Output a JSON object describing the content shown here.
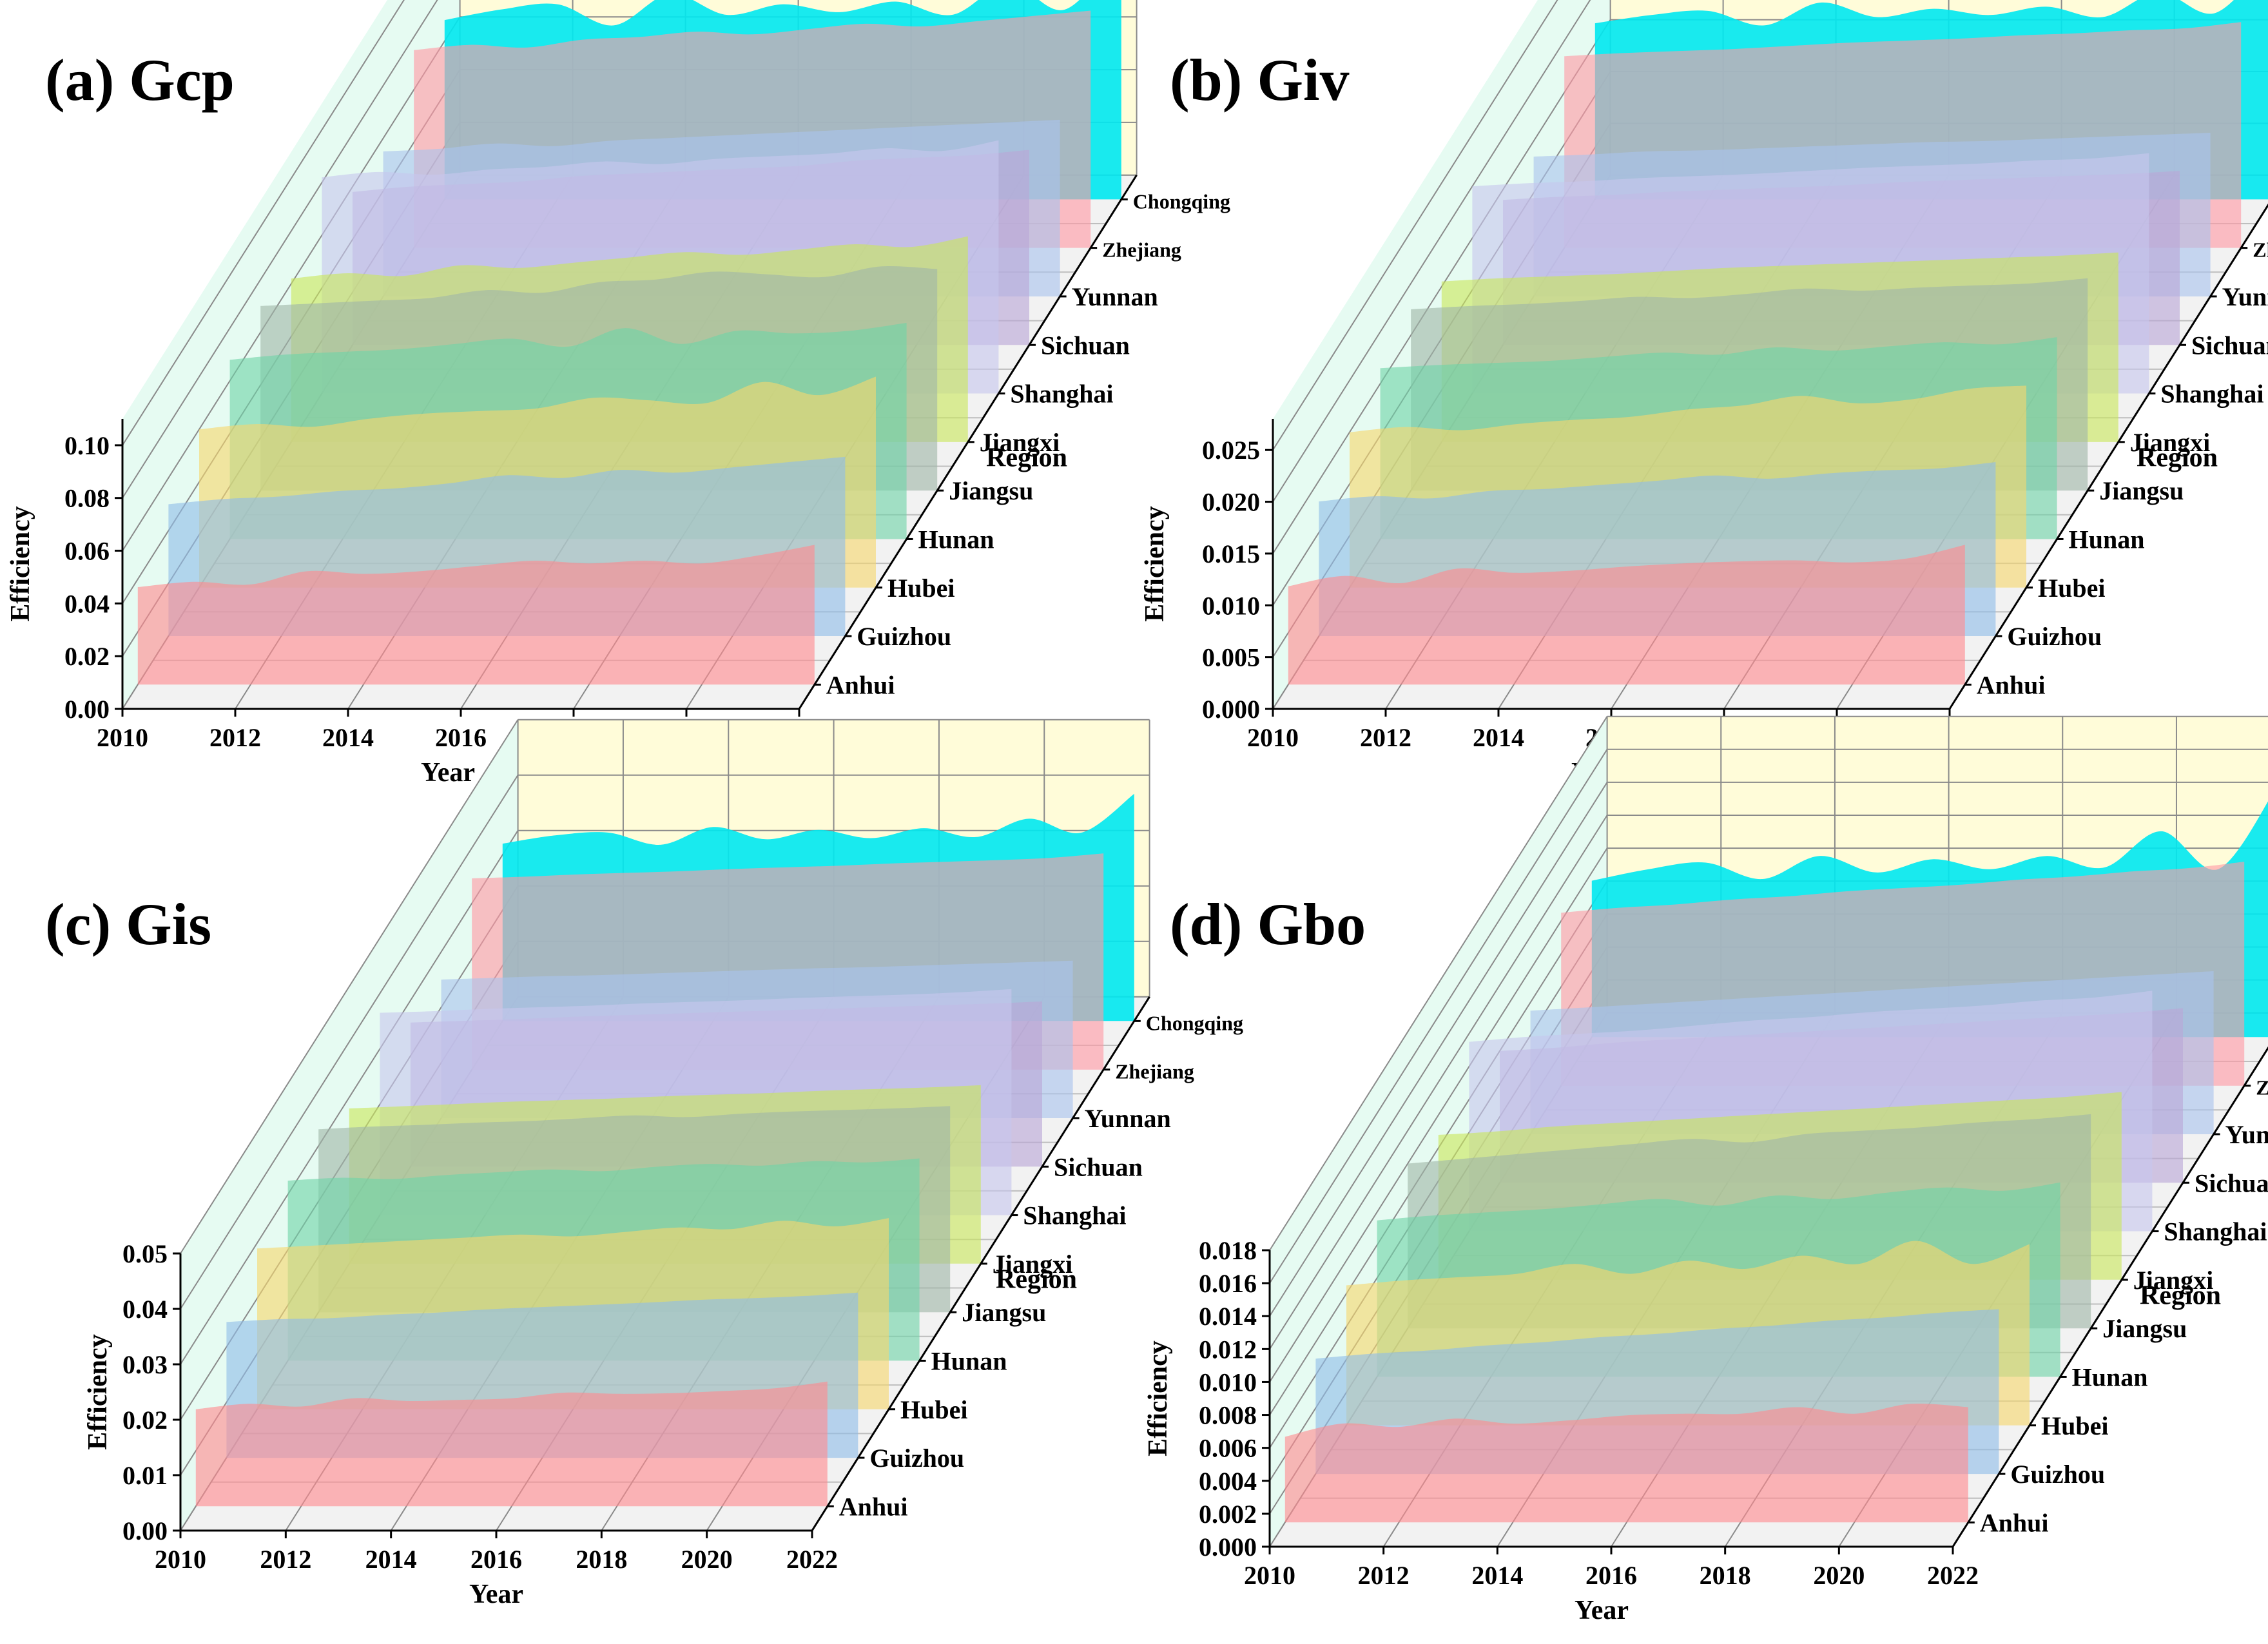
{
  "figure": {
    "regions": [
      "Anhui",
      "Guizhou",
      "Hubei",
      "Hunan",
      "Jiangsu",
      "Jiangxi",
      "Shanghai",
      "Sichuan",
      "Yunnan",
      "Zhejiang",
      "Chongqing"
    ],
    "region_colors": [
      "#ff8a8f",
      "#8fbde8",
      "#f5d76e",
      "#6fd3a8",
      "#9fb6a8",
      "#c9e65c",
      "#c7c7ee",
      "#b9a7d6",
      "#a9c4ee",
      "#ff9aa5",
      "#00e8f0"
    ],
    "years": [
      2010,
      2011,
      2012,
      2013,
      2014,
      2015,
      2016,
      2017,
      2018,
      2019,
      2020,
      2021,
      2022
    ],
    "colors": {
      "back_wall": "#fffcd9",
      "left_wall": "#e6fbf2",
      "floor": "#f2f2f2",
      "grid": "#8a8a8a"
    }
  },
  "chart_data": [
    {
      "type": "area",
      "title": "(a) Gcp",
      "xlabel": "Year",
      "ylabel": "Efficiency",
      "zlabel": "Region",
      "x_ticks": [
        "2010",
        "2012",
        "2014",
        "2016",
        "2018",
        "2020",
        "2022"
      ],
      "xlim": [
        2010,
        2022
      ],
      "y_ticks": [
        "0.00",
        "0.02",
        "0.04",
        "0.06",
        "0.08",
        "0.10"
      ],
      "ylim": [
        0,
        0.11
      ],
      "series": [
        {
          "name": "Anhui",
          "values": [
            0.037,
            0.039,
            0.038,
            0.043,
            0.042,
            0.043,
            0.045,
            0.047,
            0.046,
            0.047,
            0.046,
            0.049,
            0.053
          ]
        },
        {
          "name": "Guizhou",
          "values": [
            0.05,
            0.052,
            0.053,
            0.055,
            0.056,
            0.058,
            0.061,
            0.06,
            0.063,
            0.062,
            0.064,
            0.066,
            0.068
          ]
        },
        {
          "name": "Hubei",
          "values": [
            0.06,
            0.062,
            0.061,
            0.064,
            0.066,
            0.067,
            0.068,
            0.072,
            0.071,
            0.07,
            0.078,
            0.073,
            0.08
          ]
        },
        {
          "name": "Hunan",
          "values": [
            0.068,
            0.07,
            0.071,
            0.072,
            0.074,
            0.076,
            0.073,
            0.08,
            0.074,
            0.079,
            0.078,
            0.079,
            0.082
          ]
        },
        {
          "name": "Jiangsu",
          "values": [
            0.07,
            0.071,
            0.072,
            0.073,
            0.076,
            0.075,
            0.079,
            0.08,
            0.083,
            0.082,
            0.081,
            0.085,
            0.084
          ]
        },
        {
          "name": "Jiangxi",
          "values": [
            0.062,
            0.064,
            0.063,
            0.067,
            0.066,
            0.068,
            0.07,
            0.072,
            0.071,
            0.073,
            0.075,
            0.074,
            0.078
          ]
        },
        {
          "name": "Shanghai",
          "values": [
            0.082,
            0.084,
            0.083,
            0.085,
            0.086,
            0.088,
            0.087,
            0.089,
            0.09,
            0.091,
            0.093,
            0.092,
            0.096
          ]
        },
        {
          "name": "Sichuan",
          "values": [
            0.058,
            0.06,
            0.061,
            0.062,
            0.064,
            0.065,
            0.066,
            0.067,
            0.068,
            0.07,
            0.071,
            0.072,
            0.074
          ]
        },
        {
          "name": "Yunnan",
          "values": [
            0.055,
            0.056,
            0.058,
            0.057,
            0.059,
            0.06,
            0.061,
            0.062,
            0.063,
            0.064,
            0.065,
            0.066,
            0.067
          ]
        },
        {
          "name": "Zhejiang",
          "values": [
            0.075,
            0.077,
            0.076,
            0.079,
            0.08,
            0.082,
            0.081,
            0.083,
            0.085,
            0.084,
            0.086,
            0.088,
            0.09
          ]
        },
        {
          "name": "Chongqing",
          "values": [
            0.068,
            0.072,
            0.074,
            0.066,
            0.078,
            0.07,
            0.074,
            0.071,
            0.075,
            0.07,
            0.082,
            0.072,
            0.095
          ]
        }
      ]
    },
    {
      "type": "area",
      "title": "(b) Giv",
      "xlabel": "Year",
      "ylabel": "Efficiency",
      "zlabel": "Region",
      "x_ticks": [
        "2010",
        "2012",
        "2014",
        "2016",
        "2018",
        "2020",
        "2022"
      ],
      "xlim": [
        2010,
        2022
      ],
      "y_ticks": [
        "0.000",
        "0.005",
        "0.010",
        "0.015",
        "0.020",
        "0.025"
      ],
      "ylim": [
        0,
        0.028
      ],
      "series": [
        {
          "name": "Anhui",
          "values": [
            0.0095,
            0.0105,
            0.0098,
            0.0112,
            0.0108,
            0.011,
            0.0114,
            0.0117,
            0.0119,
            0.012,
            0.0118,
            0.0122,
            0.0135
          ]
        },
        {
          "name": "Guizhou",
          "values": [
            0.013,
            0.0135,
            0.0133,
            0.014,
            0.0142,
            0.0146,
            0.015,
            0.0155,
            0.0152,
            0.0157,
            0.016,
            0.0162,
            0.0168
          ]
        },
        {
          "name": "Hubei",
          "values": [
            0.015,
            0.0155,
            0.0152,
            0.0158,
            0.0162,
            0.0165,
            0.0172,
            0.0176,
            0.0185,
            0.0178,
            0.0182,
            0.0192,
            0.0195
          ]
        },
        {
          "name": "Hunan",
          "values": [
            0.0165,
            0.0168,
            0.017,
            0.0172,
            0.0176,
            0.018,
            0.0178,
            0.0185,
            0.0182,
            0.0186,
            0.019,
            0.0188,
            0.0195
          ]
        },
        {
          "name": "Jiangsu",
          "values": [
            0.0175,
            0.0178,
            0.018,
            0.0183,
            0.0187,
            0.0186,
            0.019,
            0.0195,
            0.0193,
            0.0196,
            0.0198,
            0.02,
            0.0205
          ]
        },
        {
          "name": "Jiangxi",
          "values": [
            0.0155,
            0.0158,
            0.016,
            0.0162,
            0.0165,
            0.0168,
            0.017,
            0.0172,
            0.0174,
            0.0176,
            0.0178,
            0.018,
            0.0183
          ]
        },
        {
          "name": "Shanghai",
          "values": [
            0.02,
            0.0203,
            0.0205,
            0.0208,
            0.021,
            0.0212,
            0.0215,
            0.0218,
            0.022,
            0.0222,
            0.0225,
            0.0227,
            0.0232
          ]
        },
        {
          "name": "Sichuan",
          "values": [
            0.014,
            0.0143,
            0.0145,
            0.0148,
            0.015,
            0.0152,
            0.0154,
            0.0157,
            0.0159,
            0.0161,
            0.0163,
            0.0165,
            0.0168
          ]
        },
        {
          "name": "Yunnan",
          "values": [
            0.0135,
            0.0137,
            0.014,
            0.0141,
            0.0143,
            0.0145,
            0.0147,
            0.0149,
            0.015,
            0.0152,
            0.0154,
            0.0156,
            0.0158
          ]
        },
        {
          "name": "Zhejiang",
          "values": [
            0.0185,
            0.0188,
            0.019,
            0.0192,
            0.0195,
            0.0198,
            0.02,
            0.0202,
            0.0205,
            0.0207,
            0.021,
            0.0212,
            0.0218
          ]
        },
        {
          "name": "Chongqing",
          "values": [
            0.017,
            0.0178,
            0.0182,
            0.0168,
            0.019,
            0.0176,
            0.0184,
            0.0178,
            0.0186,
            0.0176,
            0.02,
            0.018,
            0.0235
          ]
        }
      ]
    },
    {
      "type": "area",
      "title": "(c) Gis",
      "xlabel": "Year",
      "ylabel": "Efficiency",
      "zlabel": "Region",
      "x_ticks": [
        "2010",
        "2012",
        "2014",
        "2016",
        "2018",
        "2020",
        "2022"
      ],
      "xlim": [
        2010,
        2022
      ],
      "y_ticks": [
        "0.00",
        "0.01",
        "0.02",
        "0.03",
        "0.04",
        "0.05"
      ],
      "ylim": [
        0,
        0.05
      ],
      "series": [
        {
          "name": "Anhui",
          "values": [
            0.0175,
            0.0185,
            0.018,
            0.0195,
            0.019,
            0.0192,
            0.0195,
            0.0205,
            0.0203,
            0.0204,
            0.0208,
            0.0213,
            0.0225
          ]
        },
        {
          "name": "Guizhou",
          "values": [
            0.0245,
            0.025,
            0.0252,
            0.0258,
            0.0262,
            0.0268,
            0.0272,
            0.0276,
            0.028,
            0.0285,
            0.0288,
            0.0292,
            0.0298
          ]
        },
        {
          "name": "Hubei",
          "values": [
            0.029,
            0.0295,
            0.03,
            0.0305,
            0.031,
            0.0315,
            0.0312,
            0.032,
            0.0328,
            0.0325,
            0.034,
            0.033,
            0.0345
          ]
        },
        {
          "name": "Hunan",
          "values": [
            0.0325,
            0.033,
            0.0328,
            0.0335,
            0.034,
            0.0345,
            0.0342,
            0.035,
            0.0355,
            0.0352,
            0.036,
            0.0358,
            0.0365
          ]
        },
        {
          "name": "Jiangsu",
          "values": [
            0.033,
            0.0335,
            0.0338,
            0.0342,
            0.0345,
            0.035,
            0.0355,
            0.0352,
            0.0358,
            0.0362,
            0.0365,
            0.0368,
            0.0372
          ]
        },
        {
          "name": "Jiangxi",
          "values": [
            0.028,
            0.0284,
            0.0288,
            0.0292,
            0.0295,
            0.0298,
            0.0302,
            0.0305,
            0.0308,
            0.0312,
            0.0315,
            0.0318,
            0.0322
          ]
        },
        {
          "name": "Shanghai",
          "values": [
            0.0365,
            0.0368,
            0.0372,
            0.0375,
            0.0378,
            0.0382,
            0.0385,
            0.0388,
            0.0392,
            0.0395,
            0.0398,
            0.0402,
            0.0408
          ]
        },
        {
          "name": "Sichuan",
          "values": [
            0.026,
            0.0263,
            0.0266,
            0.027,
            0.0273,
            0.0276,
            0.0279,
            0.0282,
            0.0285,
            0.0288,
            0.0291,
            0.0294,
            0.0298
          ]
        },
        {
          "name": "Yunnan",
          "values": [
            0.025,
            0.0253,
            0.0256,
            0.0258,
            0.0261,
            0.0264,
            0.0267,
            0.027,
            0.0272,
            0.0275,
            0.0278,
            0.0281,
            0.0284
          ]
        },
        {
          "name": "Zhejiang",
          "values": [
            0.0345,
            0.0348,
            0.0352,
            0.0355,
            0.0358,
            0.0362,
            0.0365,
            0.0368,
            0.0372,
            0.0375,
            0.0378,
            0.0382,
            0.039
          ]
        },
        {
          "name": "Chongqing",
          "values": [
            0.032,
            0.0335,
            0.034,
            0.0318,
            0.035,
            0.0328,
            0.0345,
            0.033,
            0.0348,
            0.0332,
            0.0365,
            0.034,
            0.041
          ]
        }
      ]
    },
    {
      "type": "area",
      "title": "(d) Gbo",
      "xlabel": "Year",
      "ylabel": "Efficiency",
      "zlabel": "Region",
      "x_ticks": [
        "2010",
        "2012",
        "2014",
        "2016",
        "2018",
        "2020",
        "2022"
      ],
      "xlim": [
        2010,
        2022
      ],
      "y_ticks": [
        "0.000",
        "0.002",
        "0.004",
        "0.006",
        "0.008",
        "0.010",
        "0.012",
        "0.014",
        "0.016",
        "0.018"
      ],
      "ylim": [
        0,
        0.018
      ],
      "series": [
        {
          "name": "Anhui",
          "values": [
            0.0052,
            0.006,
            0.0058,
            0.0063,
            0.006,
            0.0062,
            0.0065,
            0.0066,
            0.0066,
            0.007,
            0.0066,
            0.0072,
            0.007
          ]
        },
        {
          "name": "Guizhou",
          "values": [
            0.007,
            0.0073,
            0.0075,
            0.0078,
            0.008,
            0.0083,
            0.0085,
            0.0088,
            0.009,
            0.0093,
            0.0095,
            0.0098,
            0.01
          ]
        },
        {
          "name": "Hubei",
          "values": [
            0.0085,
            0.0088,
            0.009,
            0.0092,
            0.0098,
            0.0092,
            0.01,
            0.0095,
            0.0103,
            0.0098,
            0.0112,
            0.0098,
            0.011
          ]
        },
        {
          "name": "Hunan",
          "values": [
            0.0095,
            0.0098,
            0.01,
            0.0102,
            0.0105,
            0.0108,
            0.0104,
            0.011,
            0.0108,
            0.0112,
            0.0115,
            0.0113,
            0.0118
          ]
        },
        {
          "name": "Jiangsu",
          "values": [
            0.01,
            0.0103,
            0.0106,
            0.0109,
            0.0112,
            0.0115,
            0.0113,
            0.0118,
            0.012,
            0.0122,
            0.0125,
            0.0127,
            0.013
          ]
        },
        {
          "name": "Jiangxi",
          "values": [
            0.0088,
            0.009,
            0.0093,
            0.0095,
            0.0097,
            0.0099,
            0.0101,
            0.0103,
            0.0105,
            0.0107,
            0.0109,
            0.0111,
            0.0114
          ]
        },
        {
          "name": "Shanghai",
          "values": [
            0.0115,
            0.0118,
            0.012,
            0.0122,
            0.0125,
            0.0128,
            0.013,
            0.0133,
            0.0135,
            0.0137,
            0.014,
            0.0142,
            0.0146
          ]
        },
        {
          "name": "Sichuan",
          "values": [
            0.008,
            0.0082,
            0.0085,
            0.0087,
            0.0089,
            0.0091,
            0.0093,
            0.0095,
            0.0097,
            0.0099,
            0.0101,
            0.0103,
            0.0106
          ]
        },
        {
          "name": "Yunnan",
          "values": [
            0.0075,
            0.0077,
            0.0079,
            0.0081,
            0.0083,
            0.0085,
            0.0087,
            0.0089,
            0.0091,
            0.0093,
            0.0095,
            0.0097,
            0.0099
          ]
        },
        {
          "name": "Zhejiang",
          "values": [
            0.0105,
            0.0108,
            0.011,
            0.0113,
            0.0115,
            0.0118,
            0.012,
            0.0122,
            0.0125,
            0.0127,
            0.013,
            0.0132,
            0.0136
          ]
        },
        {
          "name": "Chongqing",
          "values": [
            0.0095,
            0.0102,
            0.0106,
            0.0096,
            0.011,
            0.01,
            0.0108,
            0.0102,
            0.011,
            0.0103,
            0.0125,
            0.0102,
            0.015
          ]
        }
      ]
    }
  ]
}
